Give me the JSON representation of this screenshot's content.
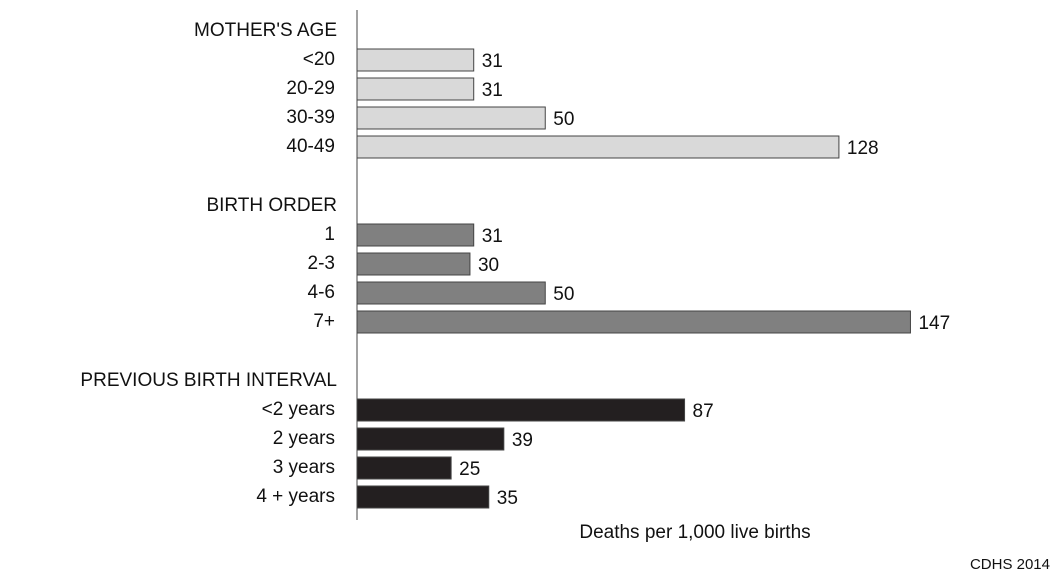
{
  "chart_data": {
    "type": "bar",
    "groups": [
      {
        "name": "MOTHER'S AGE",
        "color": "#d9d9d9",
        "categories": [
          "<20",
          "20-29",
          "30-39",
          "40-49"
        ],
        "values": [
          31,
          31,
          50,
          128
        ]
      },
      {
        "name": "BIRTH ORDER",
        "color": "#808080",
        "categories": [
          "1",
          "2-3",
          "4-6",
          "7+"
        ],
        "values": [
          31,
          30,
          50,
          147
        ]
      },
      {
        "name": "PREVIOUS BIRTH INTERVAL",
        "color": "#231f20",
        "categories": [
          "<2 years",
          "2 years",
          "3 years",
          "4 + years"
        ],
        "values": [
          87,
          39,
          25,
          35
        ]
      }
    ],
    "x_label": "Deaths per 1,000 live births",
    "source": "CDHS 2014"
  }
}
